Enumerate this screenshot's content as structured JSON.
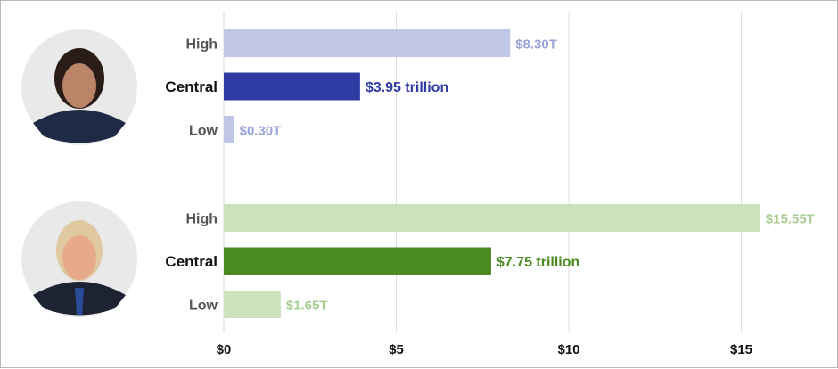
{
  "chart_data": {
    "type": "bar",
    "orientation": "horizontal",
    "xlim": [
      0,
      16.5
    ],
    "x_ticks": [
      0,
      5,
      10,
      15
    ],
    "x_tick_labels": [
      "$0",
      "$5",
      "$10",
      "$15"
    ],
    "grid": true,
    "groups": [
      {
        "portrait": "harris-portrait",
        "colors": {
          "light": "#c0c6e6",
          "dark": "#2e3ba3",
          "light_text": "#9ba4d8"
        },
        "bars": [
          {
            "category": "High",
            "value": 8.3,
            "label": "$8.30T"
          },
          {
            "category": "Central",
            "value": 3.95,
            "label": "$3.95 trillion"
          },
          {
            "category": "Low",
            "value": 0.3,
            "label": "$0.30T"
          }
        ]
      },
      {
        "portrait": "trump-portrait",
        "colors": {
          "light": "#cbe2bd",
          "dark": "#4b8a1e",
          "light_text": "#a9cc94"
        },
        "bars": [
          {
            "category": "High",
            "value": 15.55,
            "label": "$15.55T"
          },
          {
            "category": "Central",
            "value": 7.75,
            "label": "$7.75 trillion"
          },
          {
            "category": "Low",
            "value": 1.65,
            "label": "$1.65T"
          }
        ]
      }
    ]
  }
}
